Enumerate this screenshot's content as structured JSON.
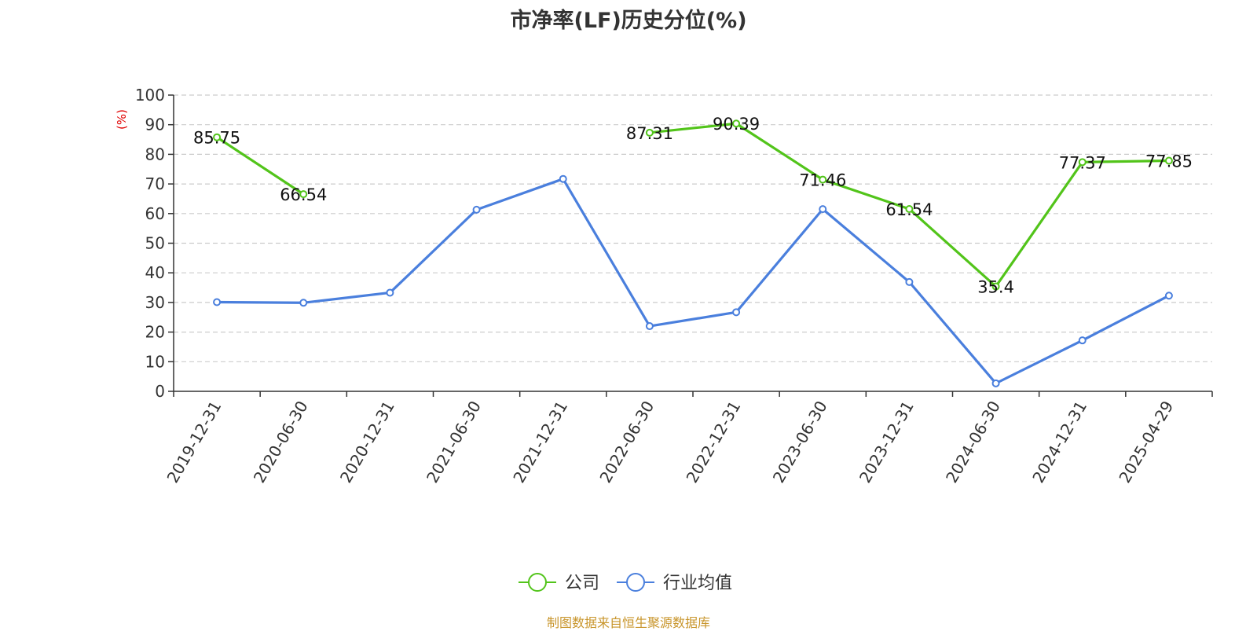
{
  "chart_data": {
    "type": "line",
    "title": "市净率(LF)历史分位(%)",
    "ylabel": "(%)",
    "xlabel": "",
    "ylim": [
      0,
      100
    ],
    "y_ticks": [
      0,
      10,
      20,
      30,
      40,
      50,
      60,
      70,
      80,
      90,
      100
    ],
    "categories": [
      "2019-12-31",
      "2020-06-30",
      "2020-12-31",
      "2021-06-30",
      "2021-12-31",
      "2022-06-30",
      "2022-12-31",
      "2023-06-30",
      "2023-12-31",
      "2024-06-30",
      "2024-12-31",
      "2025-04-29"
    ],
    "grid": true,
    "legend_position": "bottom",
    "series": [
      {
        "name": "公司",
        "color": "#52c41a",
        "values": [
          85.75,
          66.54,
          null,
          null,
          null,
          87.31,
          90.39,
          71.46,
          61.54,
          35.4,
          77.37,
          77.85
        ],
        "data_labels": [
          "85.75",
          "66.54",
          "",
          "",
          "",
          "87.31",
          "90.39",
          "71.46",
          "61.54",
          "35.4",
          "77.37",
          "77.85"
        ]
      },
      {
        "name": "行业均值",
        "color": "#4a7fdd",
        "values": [
          30.1,
          29.9,
          33.3,
          61.3,
          71.7,
          22.0,
          26.7,
          61.5,
          36.9,
          2.7,
          17.2,
          32.3
        ]
      }
    ]
  },
  "footer": {
    "source": "制图数据来自恒生聚源数据库"
  }
}
